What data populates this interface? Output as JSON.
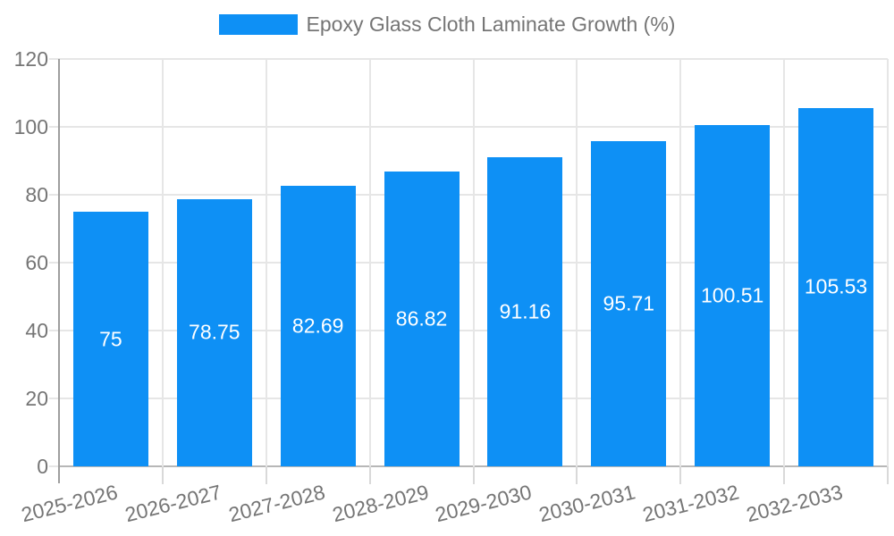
{
  "legend": {
    "label": "Epoxy Glass Cloth Laminate Growth (%)"
  },
  "colors": {
    "bar": "#0e90f5",
    "axis_text": "#757575",
    "grid": "#e6e6e6",
    "y_axis_line": "#9e9e9e",
    "baseline": "#b7b7b7",
    "tick": "#d9d9d9",
    "value_label": "#ffffff",
    "background": "#ffffff"
  },
  "chart_data": {
    "type": "bar",
    "title": "",
    "legend": "Epoxy Glass Cloth Laminate Growth (%)",
    "legend_position": "top-center",
    "categories": [
      "2025-2026",
      "2026-2027",
      "2027-2028",
      "2028-2029",
      "2029-2030",
      "2030-2031",
      "2031-2032",
      "2032-2033"
    ],
    "values": [
      75,
      78.75,
      82.69,
      86.82,
      91.16,
      95.71,
      100.51,
      105.53
    ],
    "value_labels": [
      "75",
      "78.75",
      "82.69",
      "86.82",
      "91.16",
      "95.71",
      "100.51",
      "105.53"
    ],
    "xlabel": "",
    "ylabel": "",
    "ylim": [
      0,
      120
    ],
    "yticks": [
      0,
      20,
      40,
      60,
      80,
      100,
      120
    ],
    "grid": true,
    "bar_labels_inside": true,
    "x_tick_rotation_deg": -14
  }
}
